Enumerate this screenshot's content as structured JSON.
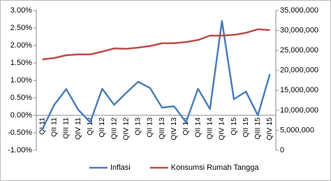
{
  "chart_data": {
    "type": "line",
    "categories": [
      "QI 11",
      "QII 11",
      "QIII 11",
      "QIV 11",
      "QI 12",
      "QII 12",
      "QIII 12",
      "QIV 12",
      "QI 13",
      "QII 13",
      "QIII 13",
      "QIV 13",
      "QI 14",
      "QII 14",
      "QIII 14",
      "QIV 14",
      "QI 15",
      "QII 15",
      "QIII 15",
      "QIV 15"
    ],
    "series": [
      {
        "name": "Inflasi",
        "color": "#4a7ebb",
        "values": [
          -0.4,
          0.3,
          0.75,
          0.16,
          -0.2,
          0.76,
          0.3,
          0.64,
          0.96,
          0.78,
          0.22,
          0.26,
          -0.2,
          0.76,
          0.18,
          2.7,
          0.46,
          0.68,
          0,
          1.18
        ]
      },
      {
        "name": "Konsumsi Rumah Tangga",
        "color": "#be4b48",
        "axis": "y2",
        "values": [
          22750000,
          23100000,
          23800000,
          24000000,
          24000000,
          24700000,
          25500000,
          25400000,
          25700000,
          26100000,
          26800000,
          26800000,
          27100000,
          27600000,
          28700000,
          28700000,
          28900000,
          29400000,
          30300000,
          30100000
        ]
      }
    ],
    "ylim": [
      -1,
      3
    ],
    "yticks": [
      {
        "value": -1,
        "label": "-1.00%"
      },
      {
        "value": -0.5,
        "label": "-0.50%"
      },
      {
        "value": 0,
        "label": "0.00%"
      },
      {
        "value": 0.5,
        "label": "0.50%"
      },
      {
        "value": 1,
        "label": "1.00%"
      },
      {
        "value": 1.5,
        "label": "1.50%"
      },
      {
        "value": 2,
        "label": "2.00%"
      },
      {
        "value": 2.5,
        "label": "2.50%"
      },
      {
        "value": 3,
        "label": "3.00%"
      }
    ],
    "y2lim": [
      0,
      35000000
    ],
    "y2ticks": [
      0,
      {
        "value": 5000000,
        "label": "5,000,000"
      },
      {
        "value": 10000000,
        "label": "10,000,000"
      },
      {
        "value": 15000000,
        "label": "15,000,000"
      },
      {
        "value": 20000000,
        "label": "20,000,000"
      },
      {
        "value": 25000000,
        "label": "25,000,000"
      },
      {
        "value": 30000000,
        "label": "30,000,000"
      },
      {
        "value": 35000000,
        "label": "35,000,000"
      }
    ],
    "grid": false,
    "legend": "bottom"
  }
}
